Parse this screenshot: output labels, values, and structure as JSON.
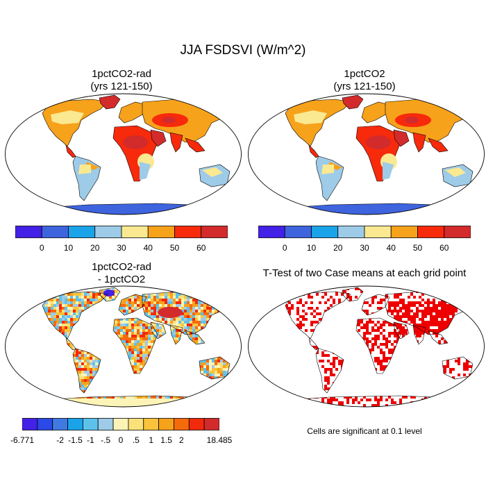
{
  "figure": {
    "title": "JJA FSDSVI (W/m^2)"
  },
  "panels": [
    {
      "id": "p1",
      "title_line1": "1pctCO2-rad",
      "title_line2": "(yrs 121-150)",
      "field": "absolute"
    },
    {
      "id": "p2",
      "title_line1": "1pctCO2",
      "title_line2": "(yrs 121-150)",
      "field": "absolute"
    },
    {
      "id": "p3",
      "title_line1": "1pctCO2-rad",
      "title_line2": "- 1pctCO2",
      "field": "difference"
    },
    {
      "id": "p4",
      "title_line1": "T-Test of two Case means at each grid point",
      "title_line2": "",
      "field": "significance"
    }
  ],
  "colorbars": {
    "absolute": {
      "colors": [
        "#4421e6",
        "#3e64de",
        "#1aa3e8",
        "#9dcbe8",
        "#fae991",
        "#f7a21b",
        "#f72a0c",
        "#d32b2b"
      ],
      "labels": [
        "0",
        "10",
        "20",
        "30",
        "40",
        "50",
        "60"
      ]
    },
    "difference": {
      "colors": [
        "#4421e6",
        "#2a49e6",
        "#3e7ae2",
        "#1aa3e8",
        "#5cc2ec",
        "#9dcbe8",
        "#fcf4b6",
        "#fae17a",
        "#f9c43b",
        "#f7a21b",
        "#f56b0c",
        "#f22a0c",
        "#d32b2b"
      ],
      "labels": [
        "-6.771",
        "-2",
        "-1.5",
        "-1",
        "-.5",
        "0",
        ".5",
        "1",
        "1.5",
        "2",
        "18.485"
      ]
    }
  },
  "significance_note": "Cells are significant at 0.1 level",
  "colors": {
    "ocean": "#ffffff",
    "coast": "#000000",
    "significant": "#ee0000"
  }
}
